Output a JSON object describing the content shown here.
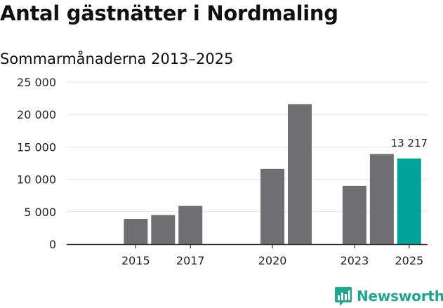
{
  "title": "Antal gästnätter i Nordmaling",
  "subtitle": "Sommarmånaderna 2013–2025",
  "brand": {
    "name": "Newsworthy",
    "logo_icon": "newsworthy-bar-chart-icon"
  },
  "colors": {
    "bar": "#6f6e73",
    "highlight": "#00a397",
    "grid": "#e3e3e3",
    "axis": "#333333",
    "brand": "#1fa68e"
  },
  "chart_data": {
    "type": "bar",
    "x": [
      2013,
      2014,
      2015,
      2016,
      2017,
      2018,
      2019,
      2020,
      2021,
      2022,
      2023,
      2024,
      2025
    ],
    "values": [
      null,
      null,
      3900,
      4500,
      5900,
      null,
      null,
      11600,
      21600,
      null,
      9000,
      13900,
      13217
    ],
    "xticks": [
      "2015",
      "2017",
      "2020",
      "2023",
      "2025"
    ],
    "xtick_years": [
      2015,
      2017,
      2020,
      2023,
      2025
    ],
    "yticks": [
      "0",
      "5 000",
      "10 000",
      "15 000",
      "20 000",
      "25 000"
    ],
    "ytick_values": [
      0,
      5000,
      10000,
      15000,
      20000,
      25000
    ],
    "ylim": [
      0,
      25000
    ],
    "highlight_year": 2025,
    "data_labels": [
      {
        "year": 2025,
        "text": "13 217"
      }
    ],
    "grid": true
  }
}
